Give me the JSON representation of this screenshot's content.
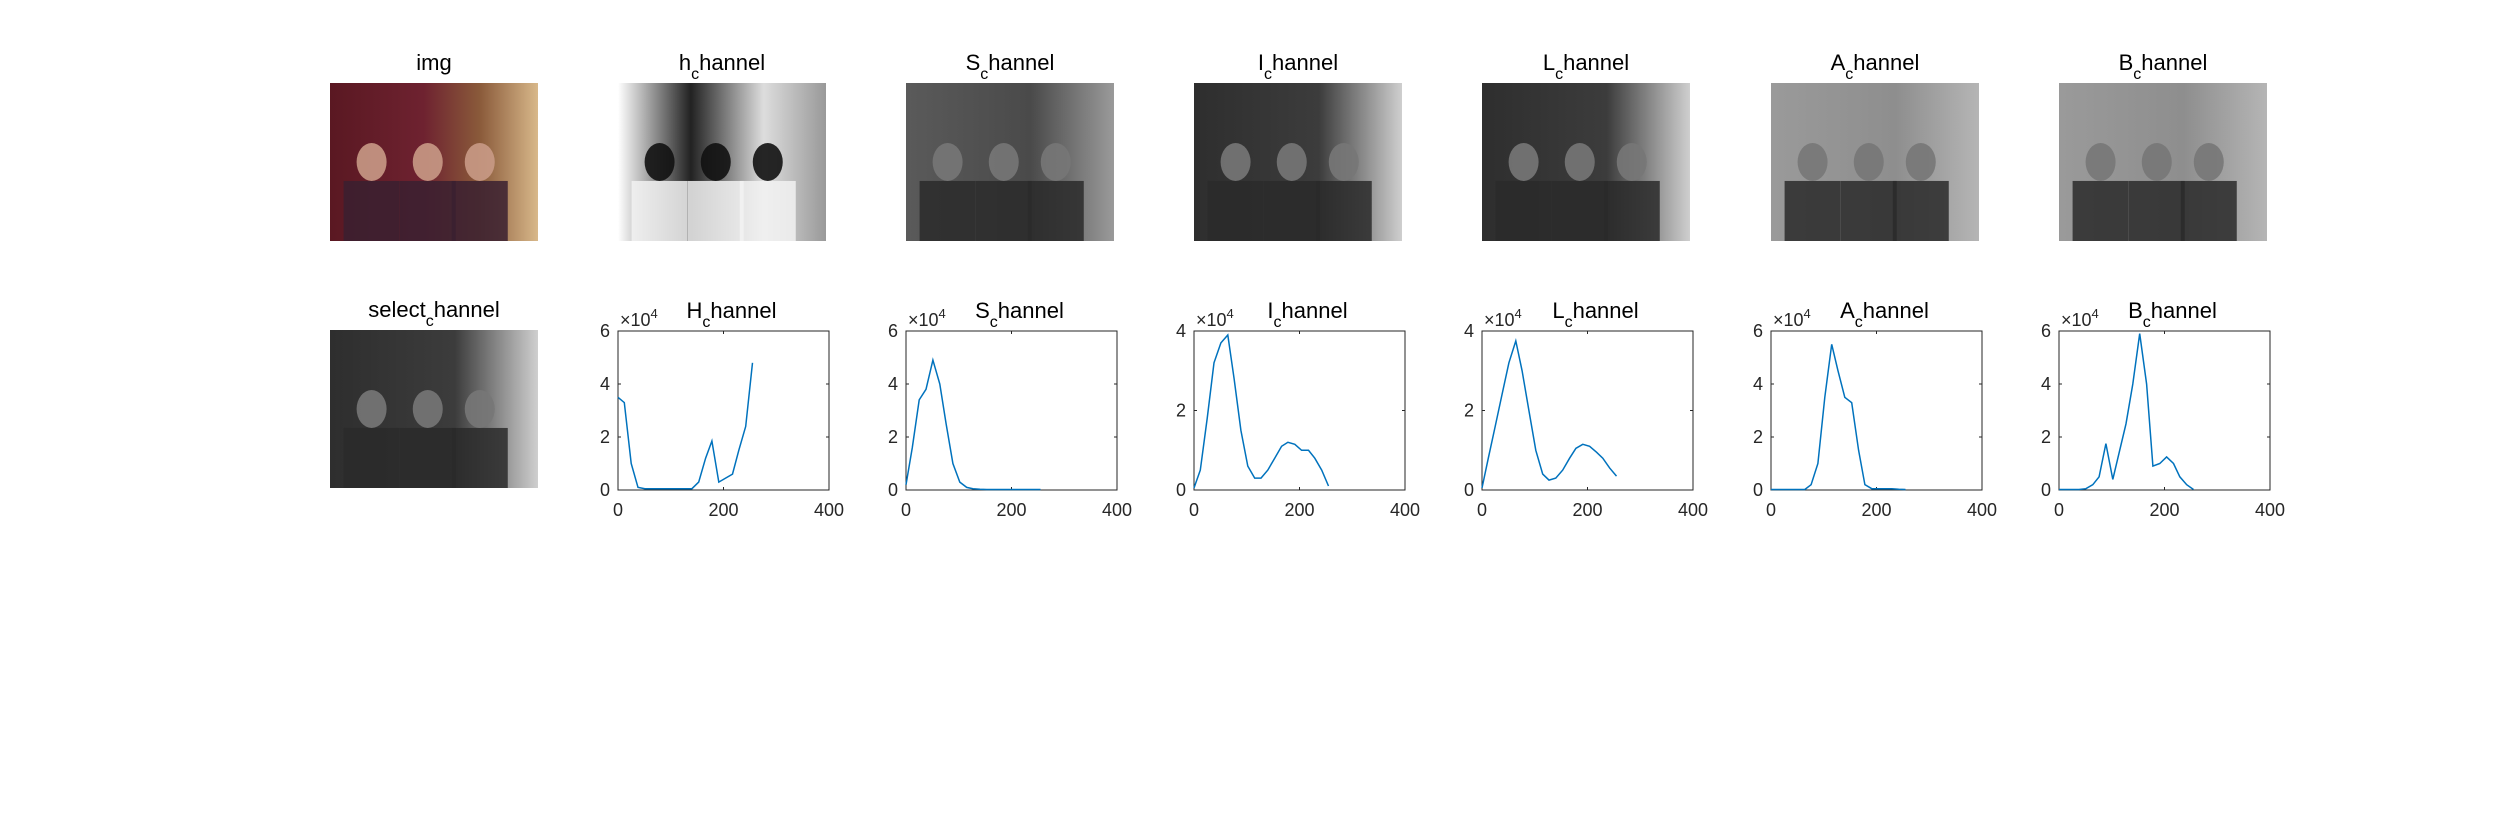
{
  "figure": {
    "images": [
      {
        "title_main": "img",
        "title_sub": "",
        "kind": "color"
      },
      {
        "title_main": "h",
        "title_sub": "c",
        "title_rest": "hannel",
        "kind": "hue"
      },
      {
        "title_main": "S",
        "title_sub": "c",
        "title_rest": "hannel",
        "kind": "sat"
      },
      {
        "title_main": "I",
        "title_sub": "c",
        "title_rest": "hannel",
        "kind": "gray"
      },
      {
        "title_main": "L",
        "title_sub": "c",
        "title_rest": "hannel",
        "kind": "gray"
      },
      {
        "title_main": "A",
        "title_sub": "c",
        "title_rest": "hannel",
        "kind": "flat"
      },
      {
        "title_main": "B",
        "title_sub": "c",
        "title_rest": "hannel",
        "kind": "flat"
      }
    ],
    "select_image": {
      "title_main": "select",
      "title_sub": "c",
      "title_rest": "hannel",
      "kind": "gray"
    },
    "line_color": "#0072BD",
    "axis_color": "#262626"
  },
  "chart_data": [
    {
      "type": "line",
      "title_main": "H",
      "title_sub": "c",
      "title_rest": "hannel",
      "exponent_label": "×10",
      "exponent_power": "4",
      "x": [
        0,
        12,
        25,
        38,
        51,
        64,
        76,
        89,
        102,
        115,
        127,
        140,
        153,
        166,
        178,
        191,
        204,
        217,
        229,
        242,
        255
      ],
      "y": [
        3.5,
        3.3,
        1.0,
        0.1,
        0.05,
        0.05,
        0.05,
        0.05,
        0.05,
        0.05,
        0.05,
        0.05,
        0.3,
        1.2,
        1.85,
        0.3,
        0.45,
        0.6,
        1.5,
        2.4,
        4.8
      ],
      "xlim": [
        0,
        400
      ],
      "ylim": [
        0,
        6
      ],
      "xticks": [
        0,
        200,
        400
      ],
      "yticks": [
        0,
        2,
        4,
        6
      ]
    },
    {
      "type": "line",
      "title_main": "S",
      "title_sub": "c",
      "title_rest": "hannel",
      "exponent_label": "×10",
      "exponent_power": "4",
      "x": [
        0,
        12,
        25,
        38,
        51,
        64,
        76,
        89,
        102,
        115,
        127,
        140,
        153,
        166,
        178,
        191,
        204,
        217,
        229,
        242,
        255
      ],
      "y": [
        0.2,
        1.6,
        3.4,
        3.8,
        4.9,
        4.0,
        2.5,
        1.0,
        0.3,
        0.1,
        0.05,
        0.03,
        0.02,
        0.02,
        0.02,
        0.02,
        0.02,
        0.02,
        0.02,
        0.02,
        0.02
      ],
      "xlim": [
        0,
        400
      ],
      "ylim": [
        0,
        6
      ],
      "xticks": [
        0,
        200,
        400
      ],
      "yticks": [
        0,
        2,
        4,
        6
      ]
    },
    {
      "type": "line",
      "title_main": "I",
      "title_sub": "c",
      "title_rest": "hannel",
      "exponent_label": "×10",
      "exponent_power": "4",
      "x": [
        0,
        12,
        25,
        38,
        51,
        64,
        76,
        89,
        102,
        115,
        127,
        140,
        153,
        166,
        178,
        191,
        204,
        217,
        229,
        242,
        255
      ],
      "y": [
        0.05,
        0.5,
        1.8,
        3.2,
        3.7,
        3.9,
        2.8,
        1.5,
        0.6,
        0.3,
        0.3,
        0.5,
        0.8,
        1.1,
        1.2,
        1.15,
        1.0,
        1.0,
        0.8,
        0.5,
        0.1
      ],
      "xlim": [
        0,
        400
      ],
      "ylim": [
        0,
        4
      ],
      "xticks": [
        0,
        200,
        400
      ],
      "yticks": [
        0,
        2,
        4
      ]
    },
    {
      "type": "line",
      "title_main": "L",
      "title_sub": "c",
      "title_rest": "hannel",
      "exponent_label": "×10",
      "exponent_power": "4",
      "x": [
        0,
        12,
        25,
        38,
        51,
        64,
        76,
        89,
        102,
        115,
        127,
        140,
        153,
        166,
        178,
        191,
        204,
        217,
        229,
        242,
        255
      ],
      "y": [
        0.05,
        0.8,
        1.6,
        2.4,
        3.2,
        3.75,
        3.0,
        2.0,
        1.0,
        0.4,
        0.25,
        0.3,
        0.5,
        0.8,
        1.05,
        1.15,
        1.1,
        0.95,
        0.8,
        0.55,
        0.35
      ],
      "xlim": [
        0,
        400
      ],
      "ylim": [
        0,
        4
      ],
      "xticks": [
        0,
        200,
        400
      ],
      "yticks": [
        0,
        2,
        4
      ]
    },
    {
      "type": "line",
      "title_main": "A",
      "title_sub": "c",
      "title_rest": "hannel",
      "exponent_label": "×10",
      "exponent_power": "4",
      "x": [
        0,
        12,
        25,
        38,
        51,
        64,
        76,
        89,
        102,
        115,
        127,
        140,
        153,
        166,
        178,
        191,
        204,
        217,
        229,
        242,
        255
      ],
      "y": [
        0.02,
        0.02,
        0.02,
        0.02,
        0.02,
        0.02,
        0.2,
        1.0,
        3.5,
        5.5,
        4.5,
        3.5,
        3.3,
        1.5,
        0.2,
        0.05,
        0.05,
        0.05,
        0.05,
        0.03,
        0.02
      ],
      "xlim": [
        0,
        400
      ],
      "ylim": [
        0,
        6
      ],
      "xticks": [
        0,
        200,
        400
      ],
      "yticks": [
        0,
        2,
        4,
        6
      ]
    },
    {
      "type": "line",
      "title_main": "B",
      "title_sub": "c",
      "title_rest": "hannel",
      "exponent_label": "×10",
      "exponent_power": "4",
      "x": [
        0,
        12,
        25,
        38,
        51,
        64,
        76,
        89,
        102,
        115,
        127,
        140,
        153,
        166,
        178,
        191,
        204,
        217,
        229,
        242,
        255
      ],
      "y": [
        0.02,
        0.02,
        0.02,
        0.02,
        0.05,
        0.2,
        0.5,
        1.75,
        0.4,
        1.5,
        2.5,
        4.0,
        5.9,
        4.0,
        0.9,
        1.0,
        1.25,
        1.0,
        0.5,
        0.2,
        0.02
      ],
      "xlim": [
        0,
        400
      ],
      "ylim": [
        0,
        6
      ],
      "xticks": [
        0,
        200,
        400
      ],
      "yticks": [
        0,
        2,
        4,
        6
      ]
    }
  ]
}
